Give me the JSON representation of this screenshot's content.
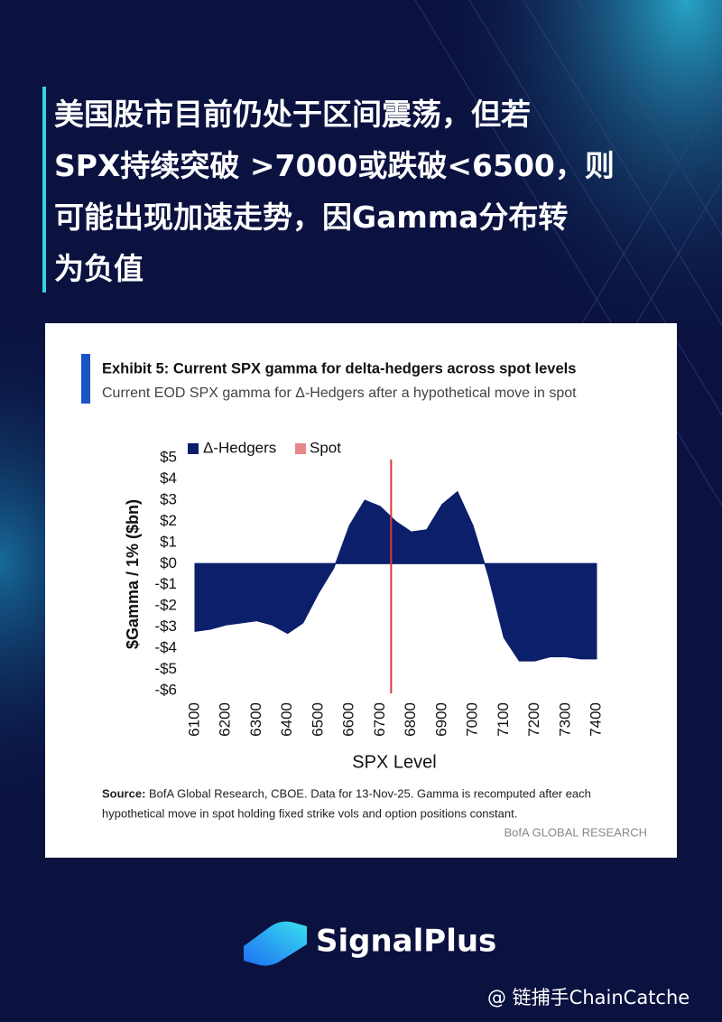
{
  "headline": [
    "美国股市目前仍处于区间震荡，但若",
    "SPX持续突破 >7000或跌破<6500，则",
    "可能出现加速走势，因Gamma分布转",
    "为负值"
  ],
  "chart_data": {
    "type": "area",
    "title": "Exhibit 5: Current SPX gamma for delta-hedgers across spot levels",
    "subtitle": "Current EOD SPX gamma for Δ-Hedgers after a hypothetical move in spot",
    "x_label": "SPX Level",
    "y_label": "$Gamma / 1% ($bn)",
    "x": [
      6100,
      6150,
      6200,
      6250,
      6300,
      6350,
      6400,
      6450,
      6500,
      6550,
      6600,
      6650,
      6700,
      6750,
      6800,
      6850,
      6900,
      6950,
      7000,
      7050,
      7100,
      7150,
      7200,
      7250,
      7300,
      7350,
      7400
    ],
    "series": [
      {
        "name": "Δ-Hedgers",
        "color": "#0c1f6b",
        "values": [
          -3.2,
          -3.1,
          -2.9,
          -2.8,
          -2.7,
          -2.9,
          -3.3,
          -2.8,
          -1.4,
          -0.2,
          1.8,
          3.0,
          2.7,
          2.0,
          1.5,
          1.6,
          2.8,
          3.4,
          1.8,
          -0.6,
          -3.5,
          -4.6,
          -4.6,
          -4.4,
          -4.4,
          -4.5,
          -4.5
        ]
      }
    ],
    "spot": {
      "name": "Spot",
      "value": 6735,
      "color": "#d8393f"
    },
    "xlim": [
      6100,
      7400
    ],
    "xticks": [
      6100,
      6200,
      6300,
      6400,
      6500,
      6600,
      6700,
      6800,
      6900,
      7000,
      7100,
      7200,
      7300,
      7400
    ],
    "ylim": [
      -6,
      5
    ],
    "yticks": [
      {
        "value": 5,
        "label": "$5"
      },
      {
        "value": 4,
        "label": "$4"
      },
      {
        "value": 3,
        "label": "$3"
      },
      {
        "value": 2,
        "label": "$2"
      },
      {
        "value": 1,
        "label": "$1"
      },
      {
        "value": 0,
        "label": "$0"
      },
      {
        "value": -1,
        "label": "-$1"
      },
      {
        "value": -2,
        "label": "-$2"
      },
      {
        "value": -3,
        "label": "-$3"
      },
      {
        "value": -4,
        "label": "-$4"
      },
      {
        "value": -5,
        "label": "-$5"
      },
      {
        "value": -6,
        "label": "-$6"
      }
    ],
    "grid": false,
    "legend": "top-left",
    "source_label": "Source:",
    "source": [
      "BofA Global Research, CBOE. Data for 13-Nov-25. Gamma is recomputed after each",
      "hypothetical move in spot holding fixed strike vols and option positions constant."
    ],
    "credit": "BofA GLOBAL RESEARCH"
  },
  "brand": "SignalPlus",
  "watermark": "@ 链捕手ChainCatche"
}
